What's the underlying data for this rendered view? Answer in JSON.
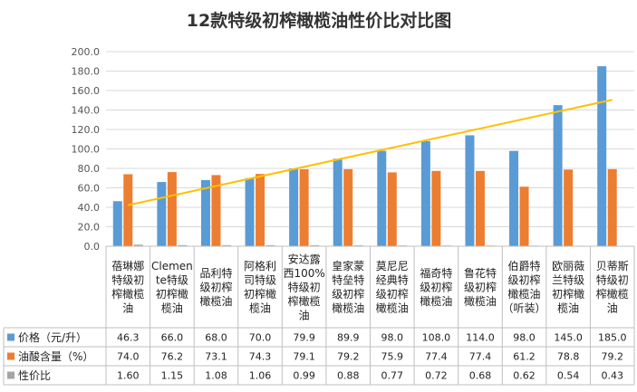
{
  "chart_data": {
    "type": "bar",
    "title": "12款特级初榨橄榄油性价比对比图",
    "categories": [
      "蓓琳娜特级初榨橄榄油",
      "Clemente特级初榨橄榄油",
      "品利特级初榨橄榄油",
      "阿格利司特级初榨橄榄油",
      "安达露西100%特级初榨橄榄油",
      "皇家蒙特垒特级初榨橄榄油",
      "莫尼尼经典特级初榨橄榄油",
      "福奇特级初榨橄榄油",
      "鲁花特级初榨橄榄油",
      "伯爵特级初榨橄榄油（听装）",
      "欧丽薇兰特级初榨橄榄油",
      "贝蒂斯特级初榨橄榄油"
    ],
    "category_lines": [
      [
        "蓓琳娜",
        "特级初",
        "榨橄榄",
        "油"
      ],
      [
        "Clemen",
        "te特级",
        "初榨橄",
        "榄油"
      ],
      [
        "品利特",
        "级初榨",
        "橄榄油"
      ],
      [
        "阿格利",
        "司特级",
        "初榨橄",
        "榄油"
      ],
      [
        "安达露",
        "西100%",
        "特级初",
        "榨橄榄",
        "油"
      ],
      [
        "皇家蒙",
        "特垒特",
        "级初榨",
        "橄榄油"
      ],
      [
        "莫尼尼",
        "经典特",
        "级初榨",
        "橄榄油"
      ],
      [
        "福奇特",
        "级初榨",
        "橄榄油"
      ],
      [
        "鲁花特",
        "级初榨",
        "橄榄油"
      ],
      [
        "伯爵特",
        "级初榨",
        "橄榄油",
        "（听装）"
      ],
      [
        "欧丽薇",
        "兰特级",
        "初榨橄",
        "榄油"
      ],
      [
        "贝蒂斯",
        "特级初",
        "榨橄榄",
        "油"
      ]
    ],
    "series": [
      {
        "name": "价格（元/升）",
        "color": "#5b9bd5",
        "values": [
          46.3,
          66.0,
          68.0,
          70.0,
          79.9,
          89.9,
          98.0,
          108.0,
          114.0,
          98.0,
          145.0,
          185.0
        ],
        "labels": [
          "46.3",
          "66.0",
          "68.0",
          "70.0",
          "79.9",
          "89.9",
          "98.0",
          "108.0",
          "114.0",
          "98.0",
          "145.0",
          "185.0"
        ]
      },
      {
        "name": "油酸含量（%）",
        "color": "#ed7d31",
        "values": [
          74.0,
          76.2,
          73.1,
          74.3,
          79.1,
          79.2,
          75.9,
          77.4,
          77.4,
          61.2,
          78.8,
          79.2
        ],
        "labels": [
          "74.0",
          "76.2",
          "73.1",
          "74.3",
          "79.1",
          "79.2",
          "75.9",
          "77.4",
          "77.4",
          "61.2",
          "78.8",
          "79.2"
        ]
      },
      {
        "name": "性价比",
        "color": "#a5a5a5",
        "values": [
          1.6,
          1.15,
          1.08,
          1.06,
          0.99,
          0.88,
          0.77,
          0.72,
          0.68,
          0.62,
          0.54,
          0.43
        ],
        "labels": [
          "1.60",
          "1.15",
          "1.08",
          "1.06",
          "0.99",
          "0.88",
          "0.77",
          "0.72",
          "0.68",
          "0.62",
          "0.54",
          "0.43"
        ]
      }
    ],
    "trendline": {
      "series": "价格（元/升）",
      "color": "#ffc000",
      "start": 42.2,
      "end": 150.5
    },
    "ylim": [
      0,
      200
    ],
    "yticks": [
      "0.0",
      "20.0",
      "40.0",
      "60.0",
      "80.0",
      "100.0",
      "120.0",
      "140.0",
      "160.0",
      "180.0",
      "200.0"
    ],
    "xlabel": "",
    "ylabel": "",
    "grid": true,
    "legend": "data-table"
  }
}
